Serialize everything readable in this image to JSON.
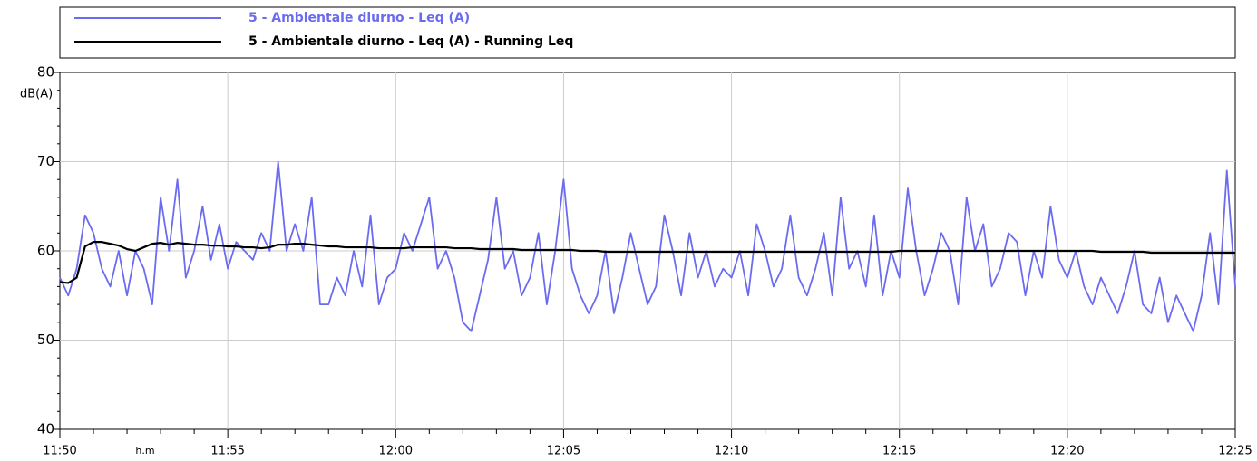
{
  "chart_data": {
    "type": "line",
    "x_label": "h.m",
    "y_label": "dB(A)",
    "x": [
      "11:50",
      null,
      null,
      null,
      null,
      null,
      null,
      null,
      null,
      null,
      null,
      null,
      null,
      null,
      null,
      null,
      null,
      null,
      null,
      null,
      "11:55",
      null,
      null,
      null,
      null,
      null,
      null,
      null,
      null,
      null,
      null,
      null,
      null,
      null,
      null,
      null,
      null,
      null,
      null,
      null,
      "12:00",
      null,
      null,
      null,
      null,
      null,
      null,
      null,
      null,
      null,
      null,
      null,
      null,
      null,
      null,
      null,
      null,
      null,
      null,
      null,
      "12:05",
      null,
      null,
      null,
      null,
      null,
      null,
      null,
      null,
      null,
      null,
      null,
      null,
      null,
      null,
      null,
      null,
      null,
      null,
      null,
      "12:10",
      null,
      null,
      null,
      null,
      null,
      null,
      null,
      null,
      null,
      null,
      null,
      null,
      null,
      null,
      null,
      null,
      null,
      null,
      null,
      "12:15",
      null,
      null,
      null,
      null,
      null,
      null,
      null,
      null,
      null,
      null,
      null,
      null,
      null,
      null,
      null,
      null,
      null,
      null,
      null,
      "12:20",
      null,
      null,
      null,
      null,
      null,
      null,
      null,
      null,
      null,
      null,
      null,
      null,
      null,
      null,
      null,
      null,
      null,
      null,
      null,
      "12:25"
    ],
    "series": [
      {
        "name": "5 - Ambientale diurno - Leq (A)",
        "color": "#6b6bf0",
        "values": [
          57,
          55,
          58,
          64,
          62,
          58,
          56,
          60,
          55,
          60,
          58,
          54,
          66,
          60,
          68,
          57,
          60,
          65,
          59,
          63,
          58,
          61,
          60,
          59,
          62,
          60,
          70,
          60,
          63,
          60,
          66,
          54,
          54,
          57,
          55,
          60,
          56,
          64,
          54,
          57,
          58,
          62,
          60,
          63,
          66,
          58,
          60,
          57,
          52,
          51,
          55,
          59,
          66,
          58,
          60,
          55,
          57,
          62,
          54,
          60,
          68,
          58,
          55,
          53,
          55,
          60,
          53,
          57,
          62,
          58,
          54,
          56,
          64,
          60,
          55,
          62,
          57,
          60,
          56,
          58,
          57,
          60,
          55,
          63,
          60,
          56,
          58,
          64,
          57,
          55,
          58,
          62,
          55,
          66,
          58,
          60,
          56,
          64,
          55,
          60,
          57,
          67,
          60,
          55,
          58,
          62,
          60,
          54,
          66,
          60,
          63,
          56,
          58,
          62,
          61,
          55,
          60,
          57,
          65,
          59,
          57,
          60,
          56,
          54,
          57,
          55,
          53,
          56,
          60,
          54,
          53,
          57,
          52,
          55,
          53,
          51,
          55,
          62,
          54,
          69,
          56
        ]
      },
      {
        "name": "5 - Ambientale diurno - Leq (A) - Running Leq",
        "color": "#000000",
        "values": [
          56.5,
          56.4,
          57,
          60.5,
          61,
          61,
          60.8,
          60.6,
          60.2,
          60,
          60.4,
          60.8,
          60.9,
          60.7,
          60.9,
          60.8,
          60.7,
          60.7,
          60.6,
          60.6,
          60.5,
          60.5,
          60.4,
          60.4,
          60.3,
          60.4,
          60.7,
          60.7,
          60.8,
          60.8,
          60.7,
          60.6,
          60.5,
          60.5,
          60.4,
          60.4,
          60.4,
          60.4,
          60.3,
          60.3,
          60.3,
          60.3,
          60.4,
          60.4,
          60.4,
          60.4,
          60.4,
          60.3,
          60.3,
          60.3,
          60.2,
          60.2,
          60.2,
          60.2,
          60.2,
          60.1,
          60.1,
          60.1,
          60.1,
          60.1,
          60.1,
          60.1,
          60,
          60,
          60,
          59.9,
          59.9,
          59.9,
          59.9,
          59.9,
          59.9,
          59.9,
          59.9,
          59.9,
          59.9,
          59.9,
          59.9,
          59.9,
          59.9,
          59.9,
          59.9,
          59.9,
          59.9,
          59.9,
          59.9,
          59.9,
          59.9,
          59.9,
          59.9,
          59.9,
          59.9,
          59.9,
          59.9,
          59.9,
          59.9,
          59.9,
          59.9,
          59.9,
          59.9,
          59.9,
          60,
          60,
          60,
          60,
          60,
          60,
          60,
          60,
          60,
          60,
          60,
          60,
          60,
          60,
          60,
          60,
          60,
          60,
          60,
          60,
          60,
          60,
          60,
          60,
          59.9,
          59.9,
          59.9,
          59.9,
          59.9,
          59.9,
          59.8,
          59.8,
          59.8,
          59.8,
          59.8,
          59.8,
          59.8,
          59.8,
          59.8,
          59.8,
          59.8
        ]
      }
    ],
    "ylim": [
      40,
      80
    ],
    "yticks": [
      40,
      50,
      60,
      70,
      80
    ],
    "grid": true
  }
}
